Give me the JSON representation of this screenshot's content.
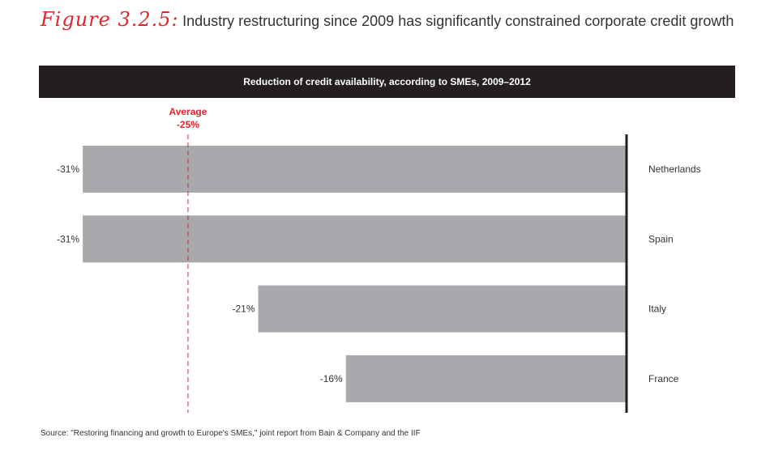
{
  "figure": {
    "label": "Figure 3.2.5:",
    "title": "Industry restructuring since 2009 has significantly constrained corporate credit growth"
  },
  "source": "Source: \"Restoring financing and growth to Europe's SMEs,\" joint report from Bain & Company and the IIF",
  "colors": {
    "bar": "#a7a9ac",
    "accent": "#e1252b",
    "header_bg": "#231f20",
    "axis": "#231f20"
  },
  "chart_data": {
    "type": "bar",
    "orientation": "horizontal",
    "title": "Reduction of credit availability, according to SMEs, 2009–2012",
    "categories": [
      "Netherlands",
      "Spain",
      "Italy",
      "France"
    ],
    "values": [
      -31,
      -31,
      -21,
      -16
    ],
    "value_labels": [
      "-31%",
      "-31%",
      "-21%",
      "-16%"
    ],
    "xlim": [
      -33.5,
      0
    ],
    "reference_line": {
      "label": "Average",
      "value_label": "-25%",
      "value": -25
    }
  }
}
